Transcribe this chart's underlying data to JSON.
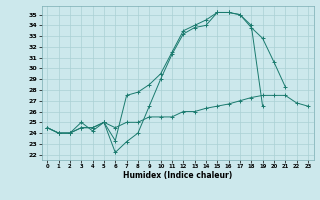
{
  "title": "",
  "xlabel": "Humidex (Indice chaleur)",
  "bg_color": "#cce8ec",
  "grid_color": "#aad0d5",
  "line_color": "#1a7a6e",
  "xlim": [
    -0.5,
    23.5
  ],
  "ylim": [
    21.5,
    35.8
  ],
  "yticks": [
    22,
    23,
    24,
    25,
    26,
    27,
    28,
    29,
    30,
    31,
    32,
    33,
    34,
    35
  ],
  "xticks": [
    0,
    1,
    2,
    3,
    4,
    5,
    6,
    7,
    8,
    9,
    10,
    11,
    12,
    13,
    14,
    15,
    16,
    17,
    18,
    19,
    20,
    21,
    22,
    23
  ],
  "line1": [
    24.5,
    24.0,
    24.0,
    24.5,
    24.5,
    25.0,
    22.2,
    23.2,
    24.0,
    26.5,
    29.0,
    31.3,
    33.2,
    33.8,
    34.0,
    35.2,
    35.2,
    35.0,
    33.8,
    32.8,
    30.6,
    28.3,
    null,
    null
  ],
  "line2": [
    24.5,
    24.0,
    24.0,
    25.0,
    24.2,
    25.0,
    23.3,
    27.5,
    27.8,
    28.5,
    29.5,
    31.5,
    33.5,
    34.0,
    34.5,
    35.2,
    35.2,
    35.0,
    34.0,
    26.5,
    null,
    null,
    null,
    null
  ],
  "line3": [
    24.5,
    24.0,
    24.0,
    24.5,
    24.5,
    25.0,
    24.5,
    25.0,
    25.0,
    25.5,
    25.5,
    25.5,
    26.0,
    26.0,
    26.3,
    26.5,
    26.7,
    27.0,
    27.3,
    27.5,
    27.5,
    27.5,
    26.8,
    26.5
  ]
}
